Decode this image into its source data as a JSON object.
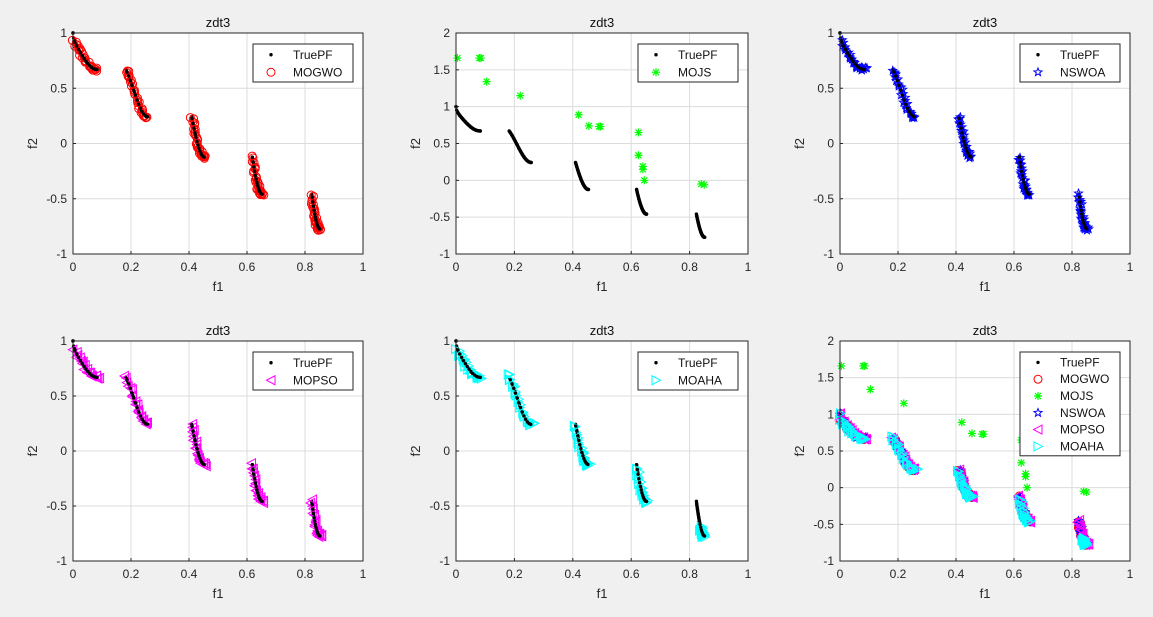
{
  "chart_data": [
    {
      "type": "scatter",
      "title": "zdt3",
      "xlabel": "f1",
      "ylabel": "f2",
      "xlim": [
        0,
        1
      ],
      "ylim": [
        -1,
        1
      ],
      "xticks": [
        "0",
        "0.2",
        "0.4",
        "0.6",
        "0.8",
        "1"
      ],
      "yticks": [
        "-1",
        "-0.5",
        "0",
        "0.5",
        "1"
      ],
      "grid": true,
      "legend": "top-right",
      "series": [
        {
          "name": "TruePF",
          "ref": "truepf"
        },
        {
          "name": "MOGWO",
          "ref": "MOGWO"
        }
      ]
    },
    {
      "type": "scatter",
      "title": "zdt3",
      "xlabel": "f1",
      "ylabel": "f2",
      "xlim": [
        0,
        1
      ],
      "ylim": [
        -1,
        2
      ],
      "xticks": [
        "0",
        "0.2",
        "0.4",
        "0.6",
        "0.8",
        "1"
      ],
      "yticks": [
        "-1",
        "-0.5",
        "0",
        "0.5",
        "1",
        "1.5",
        "2"
      ],
      "grid": true,
      "legend": "top-right",
      "series": [
        {
          "name": "TruePF",
          "ref": "truepf"
        },
        {
          "name": "MOJS",
          "ref": "MOJS"
        }
      ]
    },
    {
      "type": "scatter",
      "title": "zdt3",
      "xlabel": "f1",
      "ylabel": "f2",
      "xlim": [
        0,
        1
      ],
      "ylim": [
        -1,
        1
      ],
      "xticks": [
        "0",
        "0.2",
        "0.4",
        "0.6",
        "0.8",
        "1"
      ],
      "yticks": [
        "-1",
        "-0.5",
        "0",
        "0.5",
        "1"
      ],
      "grid": true,
      "legend": "top-right",
      "series": [
        {
          "name": "TruePF",
          "ref": "truepf"
        },
        {
          "name": "NSWOA",
          "ref": "NSWOA"
        }
      ]
    },
    {
      "type": "scatter",
      "title": "zdt3",
      "xlabel": "f1",
      "ylabel": "f2",
      "xlim": [
        0,
        1
      ],
      "ylim": [
        -1,
        1
      ],
      "xticks": [
        "0",
        "0.2",
        "0.4",
        "0.6",
        "0.8",
        "1"
      ],
      "yticks": [
        "-1",
        "-0.5",
        "0",
        "0.5",
        "1"
      ],
      "grid": true,
      "legend": "top-right",
      "series": [
        {
          "name": "TruePF",
          "ref": "truepf"
        },
        {
          "name": "MOPSO",
          "ref": "MOPSO"
        }
      ]
    },
    {
      "type": "scatter",
      "title": "zdt3",
      "xlabel": "f1",
      "ylabel": "f2",
      "xlim": [
        0,
        1
      ],
      "ylim": [
        -1,
        1
      ],
      "xticks": [
        "0",
        "0.2",
        "0.4",
        "0.6",
        "0.8",
        "1"
      ],
      "yticks": [
        "-1",
        "-0.5",
        "0",
        "0.5",
        "1"
      ],
      "grid": true,
      "legend": "top-right",
      "series": [
        {
          "name": "TruePF",
          "ref": "truepf"
        },
        {
          "name": "MOAHA",
          "ref": "MOAHA"
        }
      ]
    },
    {
      "type": "scatter",
      "title": "zdt3",
      "xlabel": "f1",
      "ylabel": "f2",
      "xlim": [
        0,
        1
      ],
      "ylim": [
        -1,
        2
      ],
      "xticks": [
        "0",
        "0.2",
        "0.4",
        "0.6",
        "0.8",
        "1"
      ],
      "yticks": [
        "-1",
        "-0.5",
        "0",
        "0.5",
        "1",
        "1.5",
        "2"
      ],
      "grid": true,
      "legend": "top-right",
      "series": [
        {
          "name": "TruePF",
          "ref": "truepf"
        },
        {
          "name": "MOGWO",
          "ref": "MOGWO"
        },
        {
          "name": "MOJS",
          "ref": "MOJS"
        },
        {
          "name": "NSWOA",
          "ref": "NSWOA"
        },
        {
          "name": "MOPSO",
          "ref": "MOPSO"
        },
        {
          "name": "MOAHA",
          "ref": "MOAHA"
        }
      ]
    }
  ],
  "series_defs": {
    "truepf": {
      "marker": "dot",
      "color": "#000000",
      "f1_ranges": [
        [
          0,
          0.083
        ],
        [
          0.1822,
          0.2578
        ],
        [
          0.4093,
          0.4539
        ],
        [
          0.6184,
          0.6525
        ],
        [
          0.8233,
          0.8518
        ]
      ],
      "points_per_range": 40
    },
    "MOGWO": {
      "marker": "circle",
      "color": "#ff0000",
      "f1_ranges": [
        [
          0,
          0.083
        ],
        [
          0.1822,
          0.2578
        ],
        [
          0.4093,
          0.4539
        ],
        [
          0.6184,
          0.6525
        ],
        [
          0.8233,
          0.8518
        ]
      ],
      "points_per_range": 30
    },
    "NSWOA": {
      "marker": "pentagram",
      "color": "#0000ff",
      "f1_ranges": [
        [
          0,
          0.09
        ],
        [
          0.1822,
          0.258
        ],
        [
          0.409,
          0.452
        ],
        [
          0.618,
          0.652
        ],
        [
          0.8233,
          0.852
        ]
      ],
      "points_per_range": 28
    },
    "MOPSO": {
      "marker": "triangle-left",
      "color": "#ff00ff",
      "f1_ranges": [
        [
          0,
          0.09
        ],
        [
          0.182,
          0.26
        ],
        [
          0.409,
          0.455
        ],
        [
          0.618,
          0.655
        ],
        [
          0.823,
          0.855
        ]
      ],
      "points_per_range": 22
    },
    "MOAHA": {
      "marker": "triangle-right",
      "color": "#00ffff",
      "f1_ranges": [
        [
          0,
          0.09
        ],
        [
          0.176,
          0.265
        ],
        [
          0.41,
          0.458
        ],
        [
          0.62,
          0.655
        ],
        [
          0.838,
          0.85
        ]
      ],
      "points_per_range": 26
    },
    "MOJS": {
      "marker": "asterisk",
      "color": "#00ff00",
      "points": [
        [
          0.005,
          1.66
        ],
        [
          0.08,
          1.66
        ],
        [
          0.085,
          1.66
        ],
        [
          0.105,
          1.34
        ],
        [
          0.22,
          1.15
        ],
        [
          0.42,
          0.89
        ],
        [
          0.455,
          0.74
        ],
        [
          0.49,
          0.73
        ],
        [
          0.495,
          0.73
        ],
        [
          0.625,
          0.65
        ],
        [
          0.625,
          0.34
        ],
        [
          0.64,
          0.19
        ],
        [
          0.64,
          0.15
        ],
        [
          0.645,
          0.0
        ],
        [
          0.84,
          -0.05
        ],
        [
          0.85,
          -0.06
        ]
      ]
    }
  }
}
